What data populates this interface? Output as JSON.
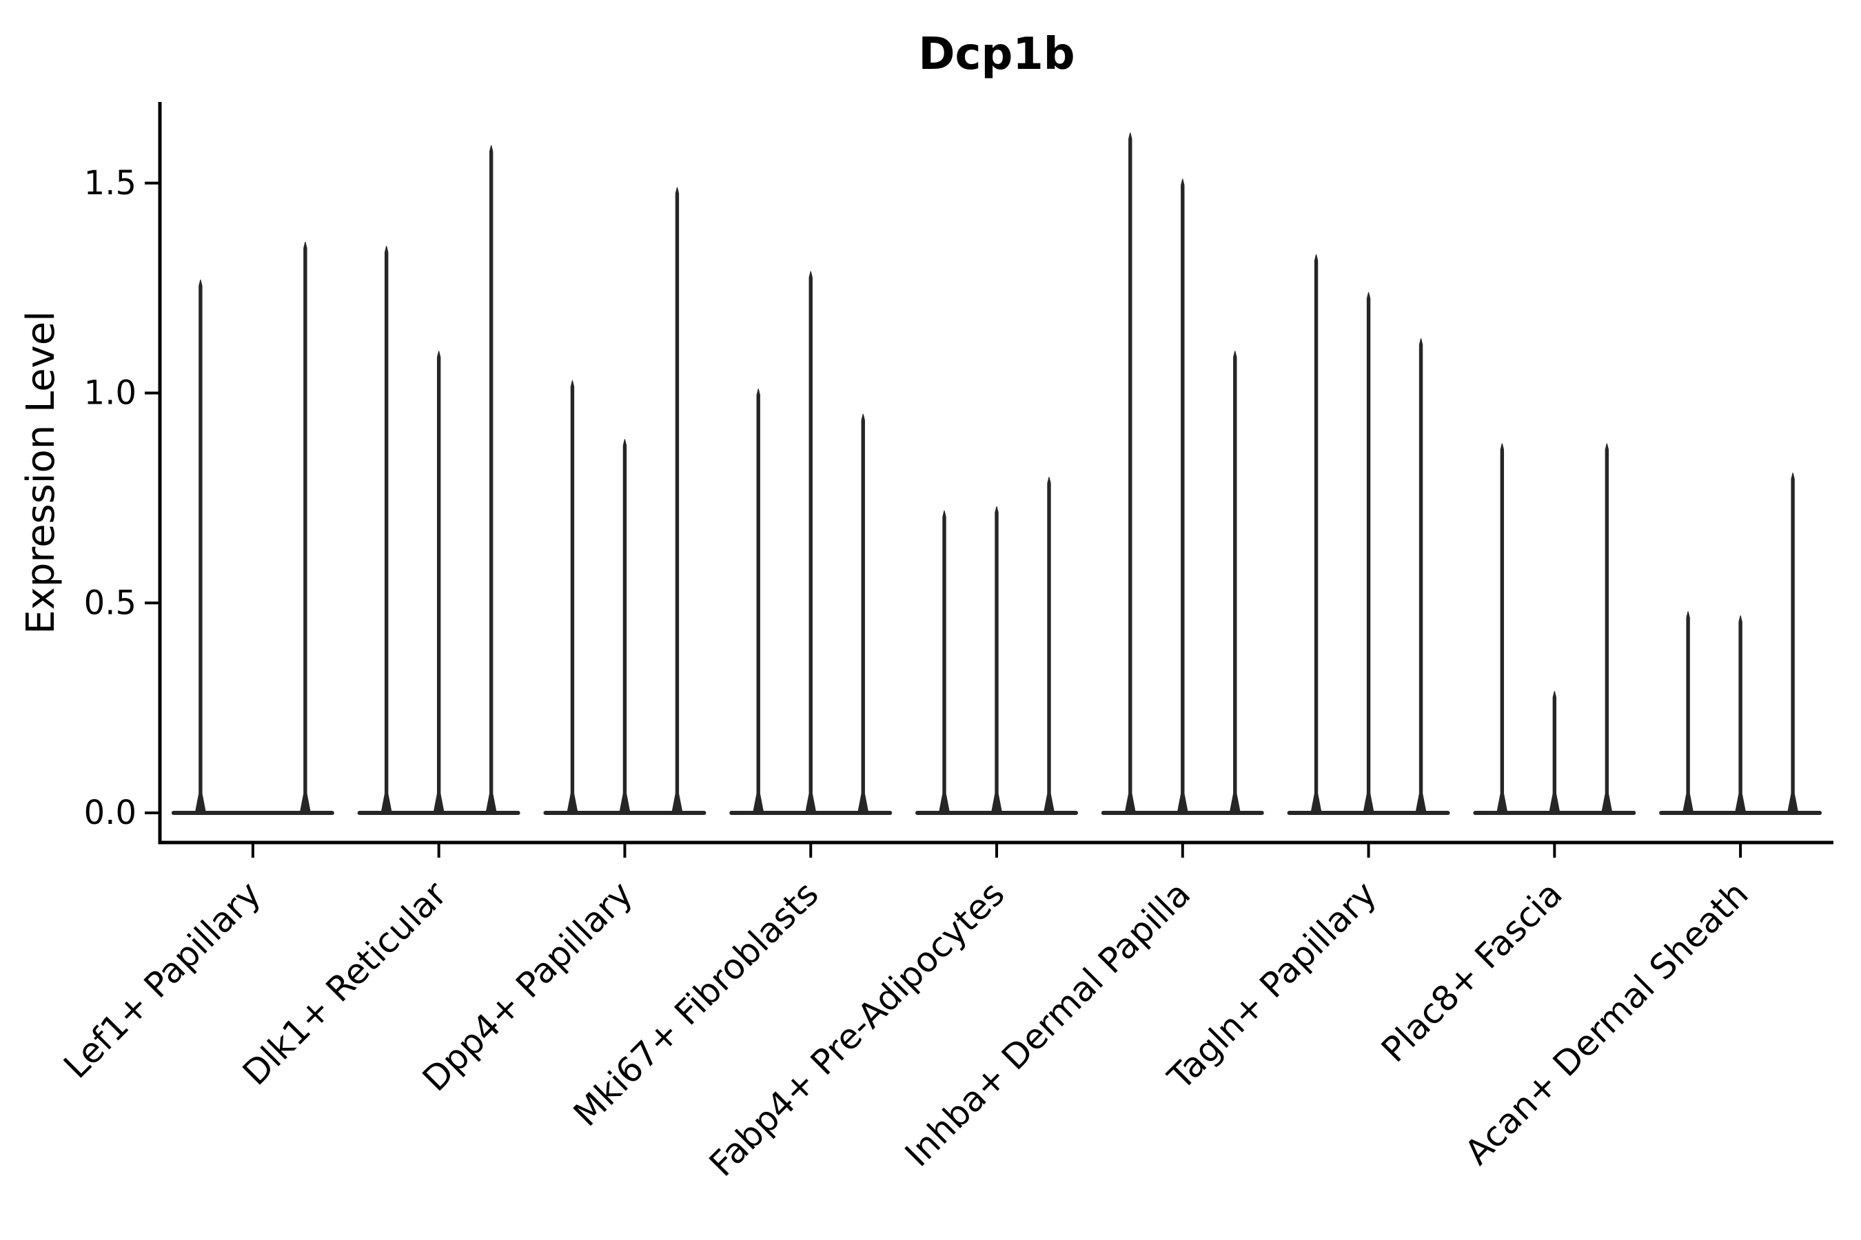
{
  "title": "Dcp1b",
  "colors": {
    "violin": "#262626",
    "axis": "#000000",
    "text": "#000000",
    "background": "#ffffff"
  },
  "chart_data": {
    "type": "violin",
    "title": "Dcp1b",
    "xlabel": "",
    "ylabel": "Expression Level",
    "ylim": [
      -0.07,
      1.68
    ],
    "ytick_values": [
      0.0,
      0.5,
      1.0,
      1.5
    ],
    "ytick_labels": [
      "0.0",
      "0.5",
      "1.0",
      "1.5"
    ],
    "grid": false,
    "legend": "none",
    "violins_per_group": 3,
    "shape_note": "Each violin is an extremely narrow spike rising from 0 to its peak expression value, with a flat dark baseline strip at y=0 spanning each group; a peak of 0 renders as baseline only.",
    "categories": [
      "Lef1+ Papillary",
      "Dlk1+ Reticular",
      "Dpp4+ Papillary",
      "Mki67+ Fibroblasts",
      "Fabp4+ Pre-Adipocytes",
      "Inhba+ Dermal Papilla",
      "Tagln+ Papillary",
      "Plac8+ Fascia",
      "Acan+ Dermal Sheath"
    ],
    "groups": [
      {
        "category": "Lef1+ Papillary",
        "violin_peaks": [
          1.27,
          0.0,
          1.36
        ]
      },
      {
        "category": "Dlk1+ Reticular",
        "violin_peaks": [
          1.35,
          1.1,
          1.59
        ]
      },
      {
        "category": "Dpp4+ Papillary",
        "violin_peaks": [
          1.03,
          0.89,
          1.49
        ]
      },
      {
        "category": "Mki67+ Fibroblasts",
        "violin_peaks": [
          1.01,
          1.29,
          0.95
        ]
      },
      {
        "category": "Fabp4+ Pre-Adipocytes",
        "violin_peaks": [
          0.72,
          0.73,
          0.8
        ]
      },
      {
        "category": "Inhba+ Dermal Papilla",
        "violin_peaks": [
          1.62,
          1.51,
          1.1
        ]
      },
      {
        "category": "Tagln+ Papillary",
        "violin_peaks": [
          1.33,
          1.24,
          1.13
        ]
      },
      {
        "category": "Plac8+ Fascia",
        "violin_peaks": [
          0.88,
          0.29,
          0.88
        ]
      },
      {
        "category": "Acan+ Dermal Sheath",
        "violin_peaks": [
          0.48,
          0.47,
          0.81
        ]
      }
    ]
  }
}
